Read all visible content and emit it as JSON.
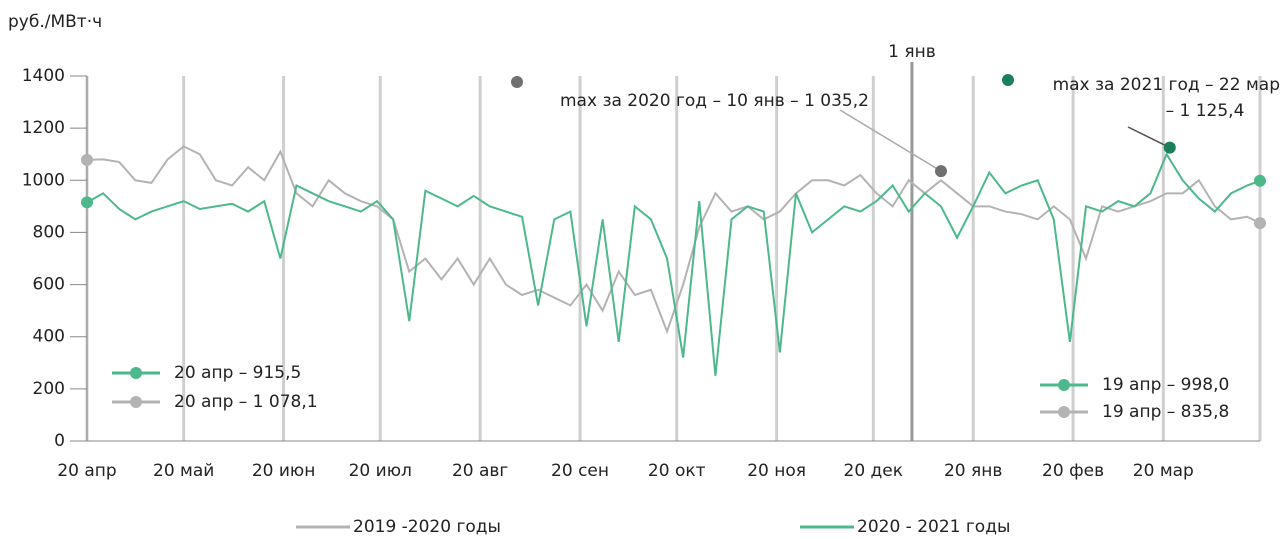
{
  "chart_data": {
    "type": "line",
    "y_label": "руб./МВт·ч",
    "x": [
      0,
      5,
      10,
      15,
      20,
      25,
      30,
      35,
      40,
      45,
      50,
      55,
      60,
      65,
      70,
      75,
      80,
      85,
      90,
      95,
      100,
      105,
      110,
      115,
      120,
      125,
      130,
      135,
      140,
      145,
      150,
      155,
      160,
      165,
      170,
      175,
      180,
      185,
      190,
      195,
      200,
      205,
      210,
      215,
      220,
      225,
      230,
      235,
      240,
      245,
      250,
      255,
      260,
      265,
      270,
      275,
      280,
      285,
      290,
      295,
      300,
      305,
      310,
      315,
      320,
      325,
      330,
      335,
      340,
      345,
      350,
      355,
      360,
      364
    ],
    "xlim": [
      0,
      364
    ],
    "xticks": [
      {
        "value": 0,
        "label": "20 апр"
      },
      {
        "value": 30,
        "label": "20 май"
      },
      {
        "value": 61,
        "label": "20 июн"
      },
      {
        "value": 91,
        "label": "20 июл"
      },
      {
        "value": 122,
        "label": "20 авг"
      },
      {
        "value": 153,
        "label": "20 сен"
      },
      {
        "value": 183,
        "label": "20 окт"
      },
      {
        "value": 214,
        "label": "20 ноя"
      },
      {
        "value": 244,
        "label": "20 дек"
      },
      {
        "value": 275,
        "label": "20 янв"
      },
      {
        "value": 306,
        "label": "20 фев"
      },
      {
        "value": 334,
        "label": "20 мар"
      },
      {
        "value": 364,
        "label": ""
      }
    ],
    "ylim": [
      0,
      1400
    ],
    "yticks": [
      0,
      200,
      400,
      600,
      800,
      1000,
      1200,
      1400
    ],
    "grid": true,
    "vline": {
      "x": 256,
      "label": "1 янв"
    },
    "series": [
      {
        "name": "2019 -2020 годы",
        "color": "#b3b3b3",
        "start_label": "20 апр – 1 078,1",
        "end_label": "19 апр – 835,8",
        "values": [
          1078.1,
          1080,
          1070,
          1000,
          990,
          1080,
          1130,
          1100,
          1000,
          980,
          1050,
          1000,
          1110,
          950,
          900,
          1000,
          950,
          920,
          900,
          850,
          650,
          700,
          620,
          700,
          600,
          700,
          600,
          560,
          580,
          550,
          520,
          600,
          500,
          650,
          560,
          580,
          420,
          600,
          820,
          950,
          880,
          900,
          850,
          880,
          950,
          1000,
          1000,
          980,
          1020,
          950,
          900,
          1000,
          950,
          1000,
          950,
          900,
          900,
          880,
          870,
          850,
          900,
          850,
          700,
          900,
          880,
          900,
          920,
          950,
          950,
          1000,
          900,
          850,
          860,
          835.8
        ]
      },
      {
        "name": "2020 - 2021 годы",
        "color": "#4db88c",
        "start_label": "20 апр – 915,5",
        "end_label": "19 апр – 998,0",
        "values": [
          915.5,
          950,
          890,
          850,
          880,
          900,
          920,
          890,
          900,
          910,
          880,
          920,
          700,
          980,
          950,
          920,
          900,
          880,
          920,
          850,
          460,
          960,
          930,
          900,
          940,
          900,
          880,
          860,
          520,
          850,
          880,
          440,
          850,
          380,
          900,
          850,
          700,
          320,
          920,
          250,
          850,
          900,
          880,
          340,
          950,
          800,
          850,
          900,
          880,
          920,
          980,
          880,
          950,
          900,
          780,
          900,
          1030,
          950,
          980,
          1000,
          850,
          380,
          900,
          880,
          920,
          900,
          950,
          1100,
          1000,
          930,
          880,
          950,
          980,
          998.0
        ]
      }
    ],
    "annotations": [
      {
        "lines": [
          "max за 2020 год – 10 янв – 1 035,2"
        ],
        "x": 265,
        "y": 1035.2,
        "series": 0
      },
      {
        "lines": [
          "max за 2021 год – 22 мар",
          "– 1 125,4"
        ],
        "x": 336,
        "y": 1125.4,
        "series": 1
      }
    ]
  }
}
